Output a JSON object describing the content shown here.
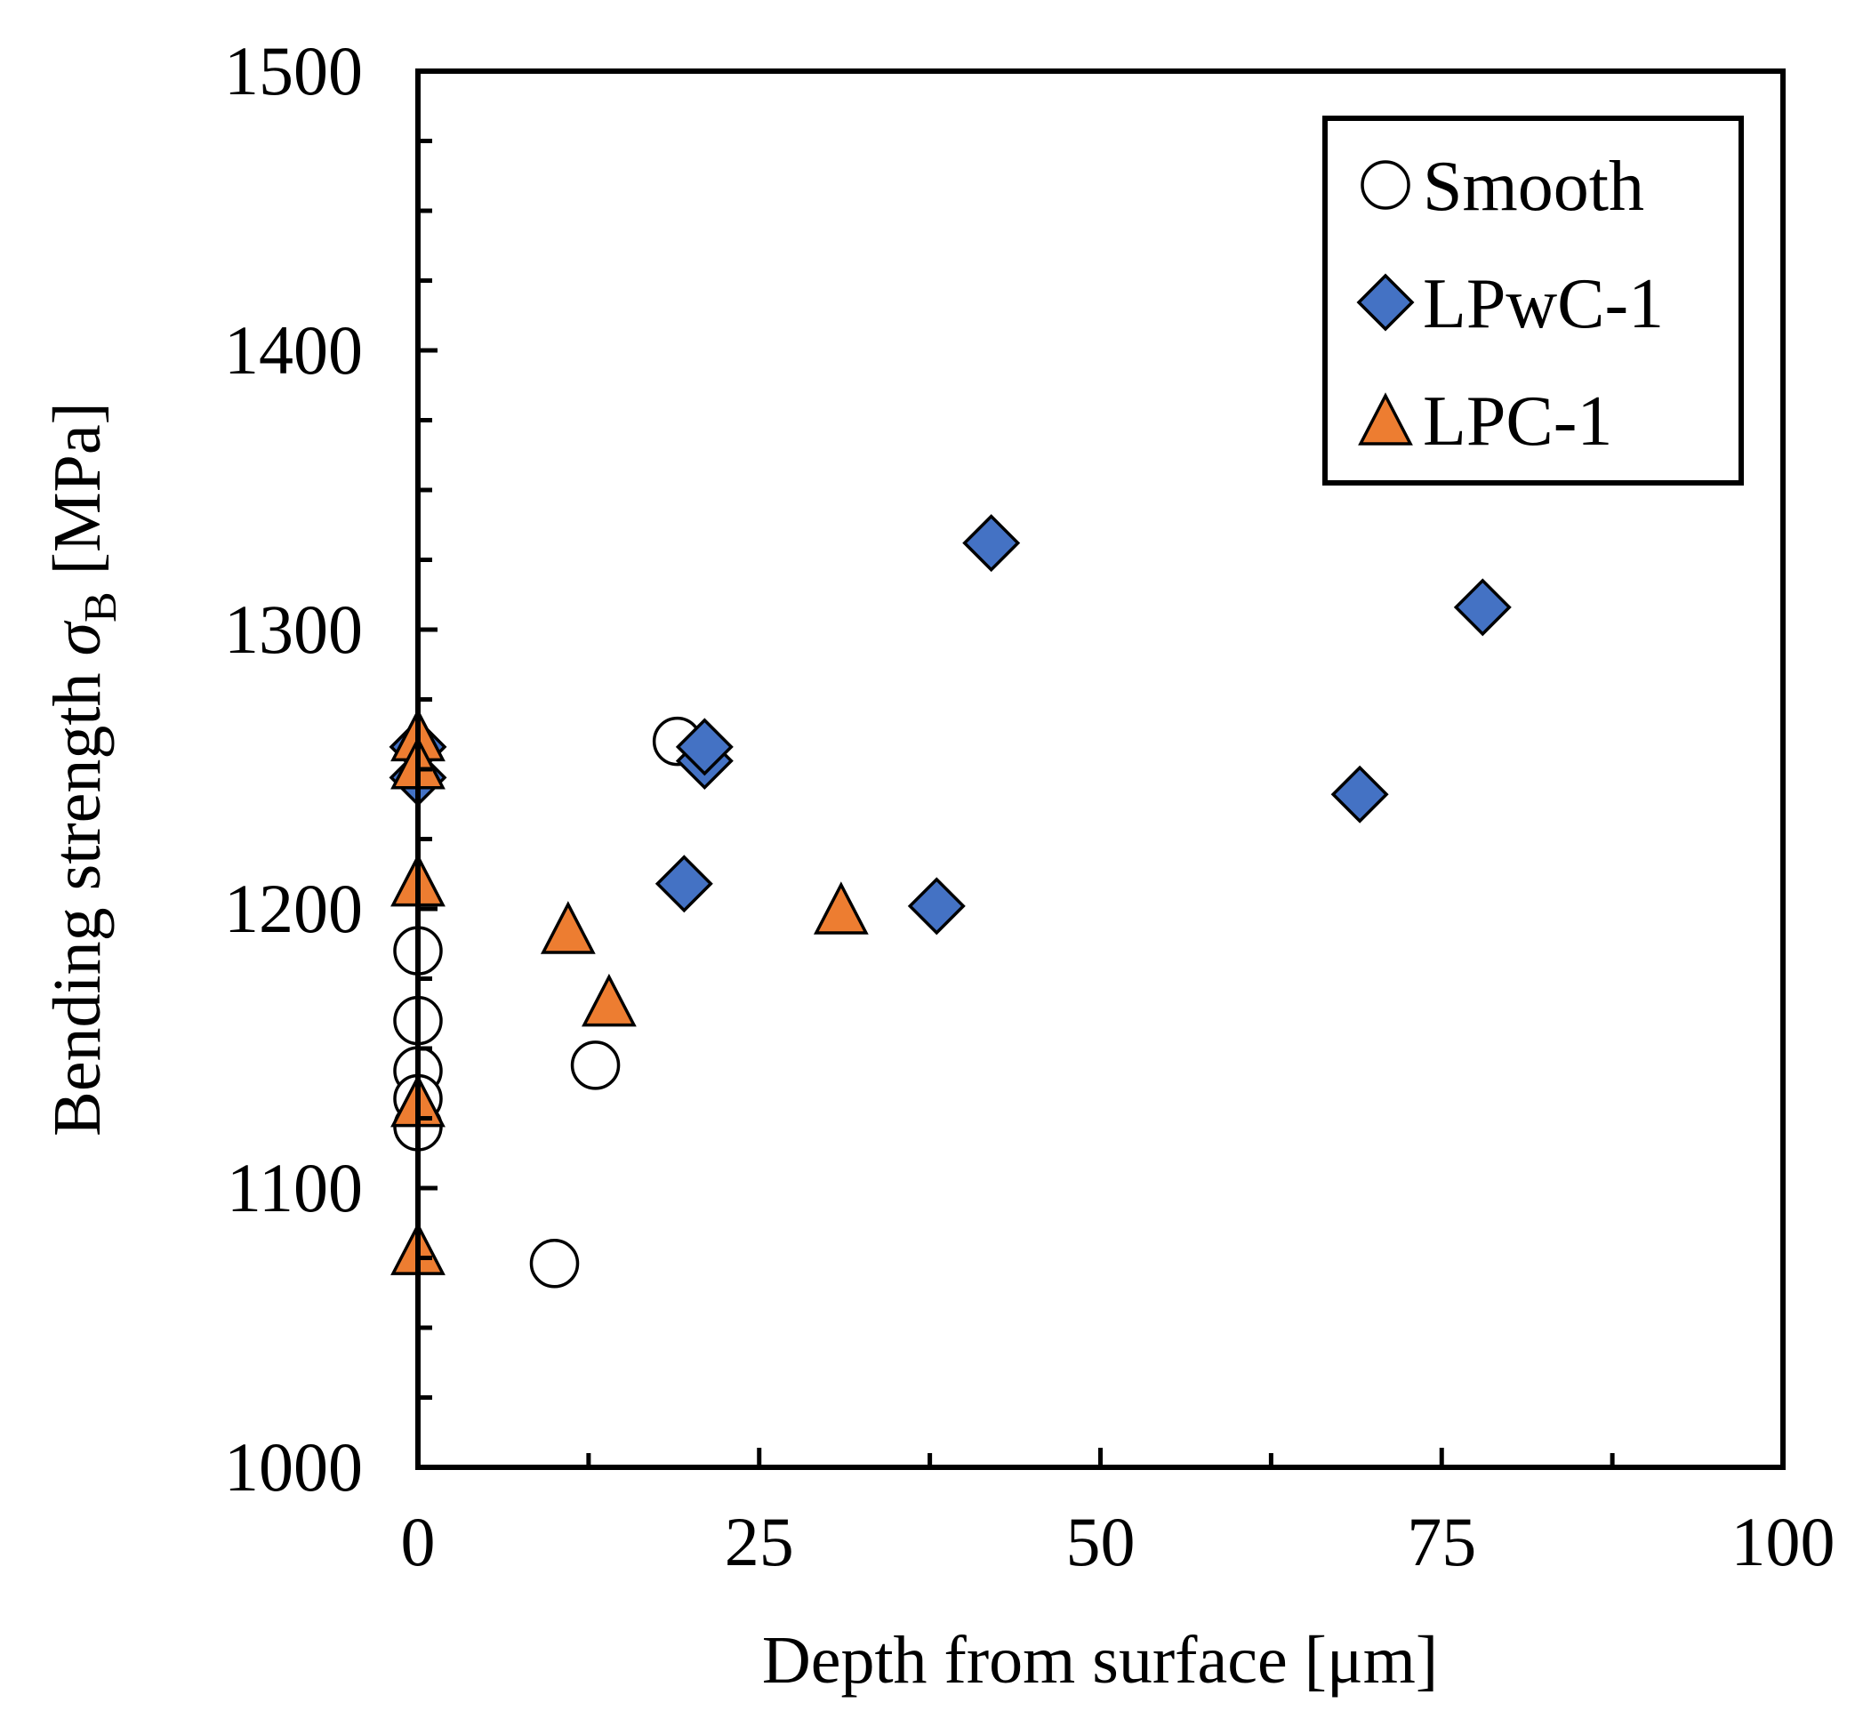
{
  "chart_data": {
    "type": "scatter",
    "title": "",
    "xlabel": "Depth from surface  [μm]",
    "ylabel": {
      "prefix": "Bending strength ",
      "symbol": "σ",
      "subscript": "B",
      "suffix": " [MPa]"
    },
    "xlim": [
      0,
      100
    ],
    "ylim": [
      1000,
      1500
    ],
    "xticks": [
      0,
      25,
      50,
      75,
      100
    ],
    "xtick_labels": [
      "0",
      "25",
      "50",
      "75",
      "100"
    ],
    "yticks": [
      1000,
      1100,
      1200,
      1300,
      1400,
      1500
    ],
    "ytick_labels": [
      "1000",
      "1100",
      "1200",
      "1300",
      "1400",
      "1500"
    ],
    "x_minor_step": 12.5,
    "y_minor_step": 25,
    "grid": false,
    "legend_position": "top-right",
    "series": [
      {
        "name": "Smooth",
        "marker": "circle",
        "fill": "#ffffff",
        "stroke": "#000000",
        "x": [
          0,
          0,
          0,
          0,
          0,
          10,
          13,
          19
        ],
        "y": [
          1185,
          1160,
          1142,
          1132,
          1122,
          1073,
          1144,
          1260
        ]
      },
      {
        "name": "LPwC-1",
        "marker": "diamond",
        "fill": "#4472c4",
        "stroke": "#000000",
        "x": [
          0,
          0,
          19.5,
          21,
          21,
          38,
          42,
          69,
          78
        ],
        "y": [
          1258,
          1247,
          1209,
          1253,
          1258,
          1201,
          1331,
          1241,
          1308
        ]
      },
      {
        "name": "LPC-1",
        "marker": "triangle",
        "fill": "#ed7d31",
        "stroke": "#000000",
        "x": [
          0,
          0,
          0,
          0,
          0,
          11,
          14,
          31
        ],
        "y": [
          1262,
          1252,
          1210,
          1131,
          1078,
          1193,
          1167,
          1200
        ]
      }
    ]
  }
}
